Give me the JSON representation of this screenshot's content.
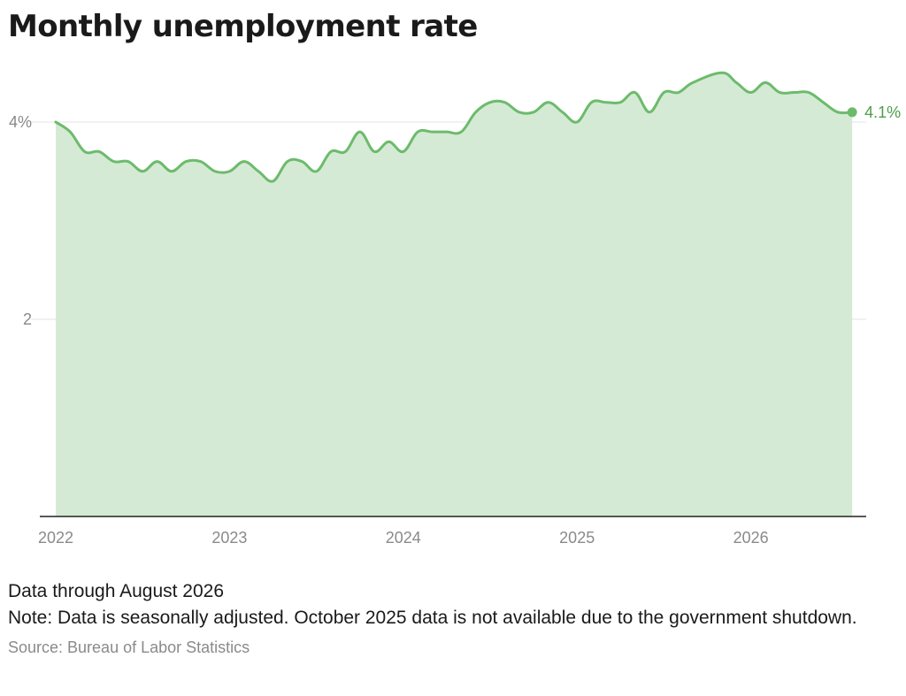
{
  "colors": {
    "line": "#6cbb6c",
    "area": "#d5ead5",
    "grid": "#e3e3e3",
    "axis": "#222222"
  },
  "chart_data": {
    "type": "area",
    "title": "Monthly unemployment rate",
    "xlabel": "",
    "ylabel": "",
    "x_ticks": [
      "2022",
      "2023",
      "2024",
      "2025",
      "2026"
    ],
    "y_ticks": [
      {
        "value": 2,
        "label": "2"
      },
      {
        "value": 4,
        "label": "4%"
      }
    ],
    "ylim": [
      0,
      4.7
    ],
    "grid": true,
    "end_label": "4.1%",
    "note_missing": "2025-10",
    "x": [
      "2022-01",
      "2022-02",
      "2022-03",
      "2022-04",
      "2022-05",
      "2022-06",
      "2022-07",
      "2022-08",
      "2022-09",
      "2022-10",
      "2022-11",
      "2022-12",
      "2023-01",
      "2023-02",
      "2023-03",
      "2023-04",
      "2023-05",
      "2023-06",
      "2023-07",
      "2023-08",
      "2023-09",
      "2023-10",
      "2023-11",
      "2023-12",
      "2024-01",
      "2024-02",
      "2024-03",
      "2024-04",
      "2024-05",
      "2024-06",
      "2024-07",
      "2024-08",
      "2024-09",
      "2024-10",
      "2024-11",
      "2024-12",
      "2025-01",
      "2025-02",
      "2025-03",
      "2025-04",
      "2025-05",
      "2025-06",
      "2025-07",
      "2025-08",
      "2025-09",
      "2025-11",
      "2025-12",
      "2026-01",
      "2026-02",
      "2026-03",
      "2026-04",
      "2026-05",
      "2026-06",
      "2026-07",
      "2026-08"
    ],
    "values": [
      4.0,
      3.9,
      3.7,
      3.7,
      3.6,
      3.6,
      3.5,
      3.6,
      3.5,
      3.6,
      3.6,
      3.5,
      3.5,
      3.6,
      3.5,
      3.4,
      3.6,
      3.6,
      3.5,
      3.7,
      3.7,
      3.9,
      3.7,
      3.8,
      3.7,
      3.9,
      3.9,
      3.9,
      3.9,
      4.1,
      4.2,
      4.2,
      4.1,
      4.1,
      4.2,
      4.1,
      4.0,
      4.2,
      4.2,
      4.2,
      4.3,
      4.1,
      4.3,
      4.3,
      4.4,
      4.5,
      4.4,
      4.3,
      4.4,
      4.3,
      4.3,
      4.3,
      4.2,
      4.1,
      4.1
    ]
  },
  "footer": {
    "data_through": "Data through August 2026",
    "note": "Note: Data is seasonally adjusted. October 2025 data is not available due to the government shutdown.",
    "source": "Source: Bureau of Labor Statistics"
  }
}
